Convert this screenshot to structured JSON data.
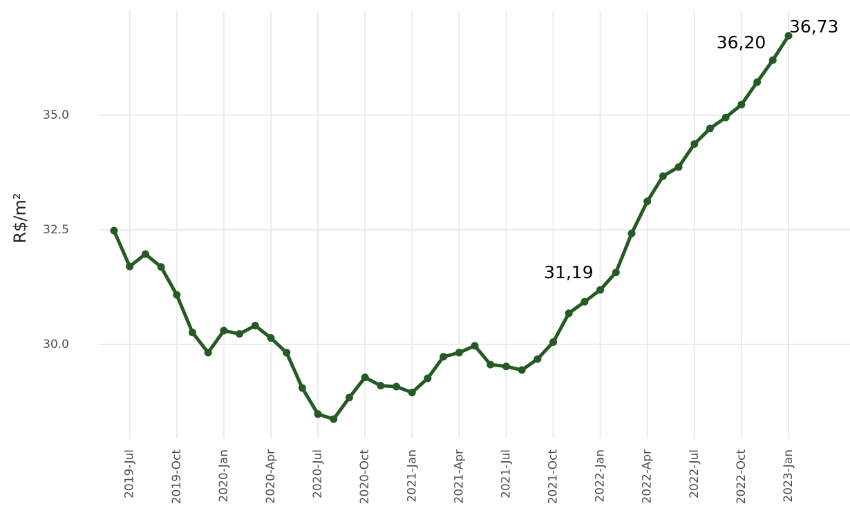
{
  "chart_data": {
    "type": "line",
    "y_label": "R$/m²",
    "categories": [
      null,
      "2019-Jul",
      null,
      null,
      "2019-Oct",
      null,
      null,
      "2020-Jan",
      null,
      null,
      "2020-Apr",
      null,
      null,
      "2020-Jul",
      null,
      null,
      "2020-Oct",
      null,
      null,
      "2021-Jan",
      null,
      null,
      "2021-Apr",
      null,
      null,
      "2021-Jul",
      null,
      null,
      "2021-Oct",
      null,
      null,
      "2022-Jan",
      null,
      null,
      "2022-Apr",
      null,
      null,
      "2022-Jul",
      null,
      null,
      "2022-Oct",
      null,
      null,
      "2023-Jan"
    ],
    "series": [
      {
        "name": "R$/m²",
        "color": "#265a24",
        "values": [
          32.48,
          31.7,
          31.97,
          31.69,
          31.08,
          30.26,
          29.82,
          30.3,
          30.23,
          30.41,
          30.14,
          29.82,
          29.05,
          28.48,
          28.37,
          28.84,
          29.28,
          29.1,
          29.08,
          28.95,
          29.26,
          29.73,
          29.82,
          29.97,
          29.56,
          29.52,
          29.44,
          29.68,
          30.05,
          30.68,
          30.93,
          31.19,
          31.57,
          32.42,
          33.12,
          33.67,
          33.87,
          34.37,
          34.71,
          34.95,
          35.23,
          35.72,
          36.2,
          36.73
        ],
        "value_labels": [
          null,
          null,
          null,
          null,
          null,
          null,
          null,
          null,
          null,
          null,
          null,
          null,
          null,
          null,
          null,
          null,
          null,
          null,
          null,
          null,
          null,
          null,
          null,
          null,
          null,
          null,
          null,
          null,
          null,
          null,
          null,
          "31,19",
          null,
          null,
          null,
          null,
          null,
          null,
          null,
          null,
          null,
          null,
          "36,20",
          "36,73"
        ]
      }
    ],
    "ylim": [
      27.95,
      37.15
    ],
    "yticks": [
      {
        "value": 30,
        "label": "30.0"
      },
      32.5,
      {
        "value": 35,
        "label": "35.0"
      }
    ],
    "grid": true
  }
}
